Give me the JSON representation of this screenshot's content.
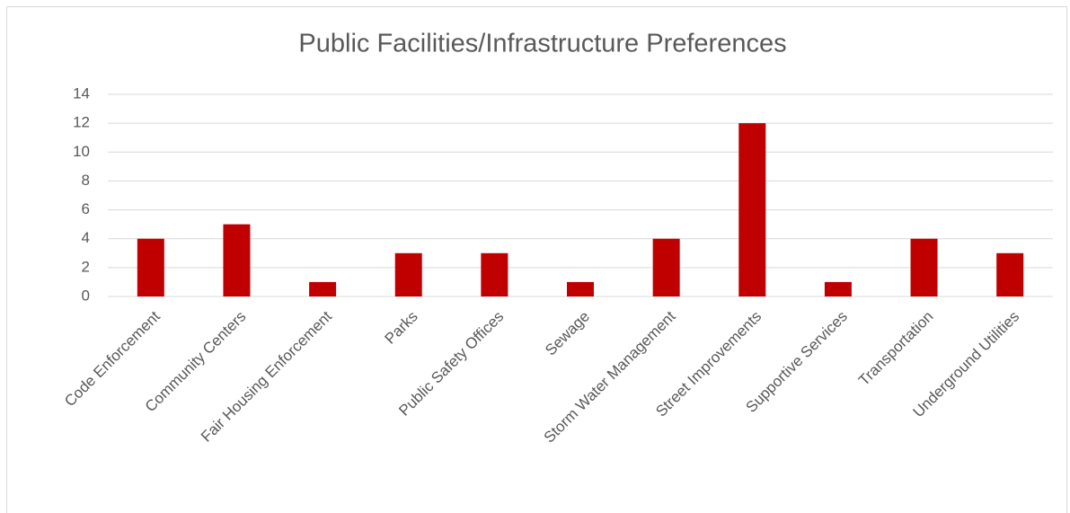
{
  "chart_data": {
    "type": "bar",
    "title": "Public Facilities/Infrastructure Preferences",
    "categories": [
      "Code Enforcement",
      "Community Centers",
      "Fair Housing Enforcement",
      "Parks",
      "Public Safety Offices",
      "Sewage",
      "Storm Water Management",
      "Street Improvements",
      "Supportive Services",
      "Transportation",
      "Underground Utilities"
    ],
    "values": [
      4,
      5,
      1,
      3,
      3,
      1,
      4,
      12,
      1,
      4,
      3
    ],
    "color": "#c00000",
    "ylim": [
      0,
      14
    ],
    "yticks": [
      0,
      2,
      4,
      6,
      8,
      10,
      12,
      14
    ],
    "grid": true
  }
}
